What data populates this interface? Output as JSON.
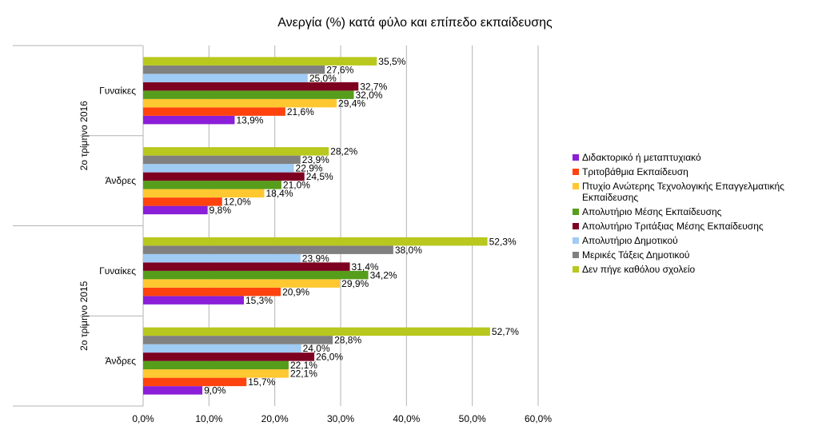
{
  "chart_data": {
    "type": "bar",
    "orientation": "horizontal",
    "title": "Ανεργία (%) κατά φύλο και επίπεδο εκπαίδευσης",
    "xlim": [
      0,
      60
    ],
    "x_ticks": [
      "0,0%",
      "10,0%",
      "20,0%",
      "30,0%",
      "40,0%",
      "50,0%",
      "60,0%"
    ],
    "grid": true,
    "legend_position": "right",
    "groups": [
      {
        "label": "2ο τρίμηνο 2016",
        "categories": [
          "Γυναίκες",
          "Άνδρες"
        ]
      },
      {
        "label": "2ο τρίμηνο 2015",
        "categories": [
          "Γυναίκες",
          "Άνδρες"
        ]
      }
    ],
    "categories": [
      "2ο τρίμηνο 2016 - Γυναίκες",
      "2ο τρίμηνο 2016 - Άνδρες",
      "2ο τρίμηνο 2015 - Γυναίκες",
      "2ο τρίμηνο 2015 - Άνδρες"
    ],
    "series": [
      {
        "name": "Διδακτορικό ή μεταπτυχιακό",
        "color": "#8b1ed8",
        "values": [
          13.9,
          9.8,
          15.3,
          9.0
        ],
        "labels": [
          "13,9%",
          "9,8%",
          "15,3%",
          "9,0%"
        ]
      },
      {
        "name": "Τριτοβάθμια Εκπαίδευση",
        "color": "#ff420e",
        "values": [
          21.6,
          12.0,
          20.9,
          15.7
        ],
        "labels": [
          "21,6%",
          "12,0%",
          "20,9%",
          "15,7%"
        ]
      },
      {
        "name": "Πτυχίο Ανώτερης Τεχνολογικής Επαγγελματικής Εκπαίδευσης",
        "color": "#ffc830",
        "values": [
          29.4,
          18.4,
          29.9,
          22.1
        ],
        "labels": [
          "29,4%",
          "18,4%",
          "29,9%",
          "22,1%"
        ]
      },
      {
        "name": "Απολυτήριο Μέσης Εκπαίδευσης",
        "color": "#579d1c",
        "values": [
          32.0,
          21.0,
          34.2,
          22.1
        ],
        "labels": [
          "32,0%",
          "21,0%",
          "34,2%",
          "22,1%"
        ]
      },
      {
        "name": "Απολυτήριο Τριτάξιας Μέσης Εκπαίδευσης",
        "color": "#7e0021",
        "values": [
          32.7,
          24.5,
          31.4,
          26.0
        ],
        "labels": [
          "32,7%",
          "24,5%",
          "31,4%",
          "26,0%"
        ]
      },
      {
        "name": "Απολυτήριο Δημοτικού",
        "color": "#9fcbf4",
        "values": [
          25.0,
          22.9,
          23.9,
          24.0
        ],
        "labels": [
          "25,0%",
          "22,9%",
          "23,9%",
          "24,0%"
        ]
      },
      {
        "name": "Μερικές Τάξεις Δημοτικού",
        "color": "#808080",
        "values": [
          27.6,
          23.9,
          38.0,
          28.8
        ],
        "labels": [
          "27,6%",
          "23,9%",
          "38,0%",
          "28,8%"
        ]
      },
      {
        "name": "Δεν πήγε καθόλου σχολείο",
        "color": "#b8c81e",
        "values": [
          35.5,
          28.2,
          52.3,
          52.7
        ],
        "labels": [
          "35,5%",
          "28,2%",
          "52,3%",
          "52,7%"
        ]
      }
    ]
  }
}
